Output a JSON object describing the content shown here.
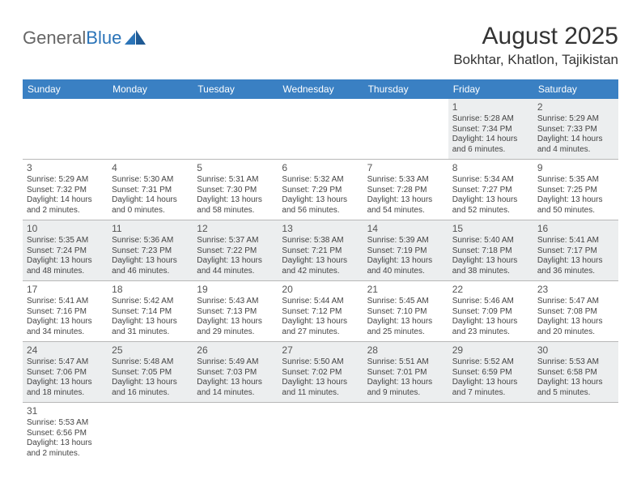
{
  "logo": {
    "part1": "General",
    "part2": "Blue"
  },
  "title": "August 2025",
  "location": "Bokhtar, Khatlon, Tajikistan",
  "colors": {
    "header_bg": "#3a80c3",
    "header_text": "#ffffff",
    "row_alt_bg": "#eceeef",
    "text": "#444444",
    "logo_accent": "#2b74b8"
  },
  "weekdays": [
    "Sunday",
    "Monday",
    "Tuesday",
    "Wednesday",
    "Thursday",
    "Friday",
    "Saturday"
  ],
  "weeks": [
    [
      null,
      null,
      null,
      null,
      null,
      {
        "n": "1",
        "sr": "Sunrise: 5:28 AM",
        "ss": "Sunset: 7:34 PM",
        "dl": "Daylight: 14 hours and 6 minutes."
      },
      {
        "n": "2",
        "sr": "Sunrise: 5:29 AM",
        "ss": "Sunset: 7:33 PM",
        "dl": "Daylight: 14 hours and 4 minutes."
      }
    ],
    [
      {
        "n": "3",
        "sr": "Sunrise: 5:29 AM",
        "ss": "Sunset: 7:32 PM",
        "dl": "Daylight: 14 hours and 2 minutes."
      },
      {
        "n": "4",
        "sr": "Sunrise: 5:30 AM",
        "ss": "Sunset: 7:31 PM",
        "dl": "Daylight: 14 hours and 0 minutes."
      },
      {
        "n": "5",
        "sr": "Sunrise: 5:31 AM",
        "ss": "Sunset: 7:30 PM",
        "dl": "Daylight: 13 hours and 58 minutes."
      },
      {
        "n": "6",
        "sr": "Sunrise: 5:32 AM",
        "ss": "Sunset: 7:29 PM",
        "dl": "Daylight: 13 hours and 56 minutes."
      },
      {
        "n": "7",
        "sr": "Sunrise: 5:33 AM",
        "ss": "Sunset: 7:28 PM",
        "dl": "Daylight: 13 hours and 54 minutes."
      },
      {
        "n": "8",
        "sr": "Sunrise: 5:34 AM",
        "ss": "Sunset: 7:27 PM",
        "dl": "Daylight: 13 hours and 52 minutes."
      },
      {
        "n": "9",
        "sr": "Sunrise: 5:35 AM",
        "ss": "Sunset: 7:25 PM",
        "dl": "Daylight: 13 hours and 50 minutes."
      }
    ],
    [
      {
        "n": "10",
        "sr": "Sunrise: 5:35 AM",
        "ss": "Sunset: 7:24 PM",
        "dl": "Daylight: 13 hours and 48 minutes."
      },
      {
        "n": "11",
        "sr": "Sunrise: 5:36 AM",
        "ss": "Sunset: 7:23 PM",
        "dl": "Daylight: 13 hours and 46 minutes."
      },
      {
        "n": "12",
        "sr": "Sunrise: 5:37 AM",
        "ss": "Sunset: 7:22 PM",
        "dl": "Daylight: 13 hours and 44 minutes."
      },
      {
        "n": "13",
        "sr": "Sunrise: 5:38 AM",
        "ss": "Sunset: 7:21 PM",
        "dl": "Daylight: 13 hours and 42 minutes."
      },
      {
        "n": "14",
        "sr": "Sunrise: 5:39 AM",
        "ss": "Sunset: 7:19 PM",
        "dl": "Daylight: 13 hours and 40 minutes."
      },
      {
        "n": "15",
        "sr": "Sunrise: 5:40 AM",
        "ss": "Sunset: 7:18 PM",
        "dl": "Daylight: 13 hours and 38 minutes."
      },
      {
        "n": "16",
        "sr": "Sunrise: 5:41 AM",
        "ss": "Sunset: 7:17 PM",
        "dl": "Daylight: 13 hours and 36 minutes."
      }
    ],
    [
      {
        "n": "17",
        "sr": "Sunrise: 5:41 AM",
        "ss": "Sunset: 7:16 PM",
        "dl": "Daylight: 13 hours and 34 minutes."
      },
      {
        "n": "18",
        "sr": "Sunrise: 5:42 AM",
        "ss": "Sunset: 7:14 PM",
        "dl": "Daylight: 13 hours and 31 minutes."
      },
      {
        "n": "19",
        "sr": "Sunrise: 5:43 AM",
        "ss": "Sunset: 7:13 PM",
        "dl": "Daylight: 13 hours and 29 minutes."
      },
      {
        "n": "20",
        "sr": "Sunrise: 5:44 AM",
        "ss": "Sunset: 7:12 PM",
        "dl": "Daylight: 13 hours and 27 minutes."
      },
      {
        "n": "21",
        "sr": "Sunrise: 5:45 AM",
        "ss": "Sunset: 7:10 PM",
        "dl": "Daylight: 13 hours and 25 minutes."
      },
      {
        "n": "22",
        "sr": "Sunrise: 5:46 AM",
        "ss": "Sunset: 7:09 PM",
        "dl": "Daylight: 13 hours and 23 minutes."
      },
      {
        "n": "23",
        "sr": "Sunrise: 5:47 AM",
        "ss": "Sunset: 7:08 PM",
        "dl": "Daylight: 13 hours and 20 minutes."
      }
    ],
    [
      {
        "n": "24",
        "sr": "Sunrise: 5:47 AM",
        "ss": "Sunset: 7:06 PM",
        "dl": "Daylight: 13 hours and 18 minutes."
      },
      {
        "n": "25",
        "sr": "Sunrise: 5:48 AM",
        "ss": "Sunset: 7:05 PM",
        "dl": "Daylight: 13 hours and 16 minutes."
      },
      {
        "n": "26",
        "sr": "Sunrise: 5:49 AM",
        "ss": "Sunset: 7:03 PM",
        "dl": "Daylight: 13 hours and 14 minutes."
      },
      {
        "n": "27",
        "sr": "Sunrise: 5:50 AM",
        "ss": "Sunset: 7:02 PM",
        "dl": "Daylight: 13 hours and 11 minutes."
      },
      {
        "n": "28",
        "sr": "Sunrise: 5:51 AM",
        "ss": "Sunset: 7:01 PM",
        "dl": "Daylight: 13 hours and 9 minutes."
      },
      {
        "n": "29",
        "sr": "Sunrise: 5:52 AM",
        "ss": "Sunset: 6:59 PM",
        "dl": "Daylight: 13 hours and 7 minutes."
      },
      {
        "n": "30",
        "sr": "Sunrise: 5:53 AM",
        "ss": "Sunset: 6:58 PM",
        "dl": "Daylight: 13 hours and 5 minutes."
      }
    ],
    [
      {
        "n": "31",
        "sr": "Sunrise: 5:53 AM",
        "ss": "Sunset: 6:56 PM",
        "dl": "Daylight: 13 hours and 2 minutes."
      },
      null,
      null,
      null,
      null,
      null,
      null
    ]
  ]
}
